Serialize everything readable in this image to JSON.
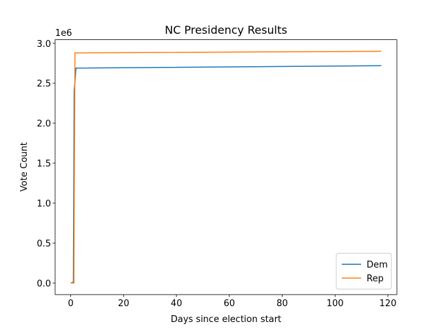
{
  "chart_data": {
    "type": "line",
    "title": "NC Presidency Results",
    "x_label": "Days since election start",
    "y_label": "Vote Count",
    "y_offset_label": "1e6",
    "xlim": [
      -5.9,
      123.4
    ],
    "xticks": [
      0,
      20,
      40,
      60,
      80,
      100,
      120
    ],
    "ylim": [
      -145000,
      3045000
    ],
    "yticks": [
      {
        "value": 0,
        "label": "0.0"
      },
      {
        "value": 500000,
        "label": "0.5"
      },
      {
        "value": 1000000,
        "label": "1.0"
      },
      {
        "value": 1500000,
        "label": "1.5"
      },
      {
        "value": 2000000,
        "label": "2.0"
      },
      {
        "value": 2500000,
        "label": "2.5"
      },
      {
        "value": 3000000,
        "label": "3.0"
      }
    ],
    "legend": "lower right",
    "series": [
      {
        "name": "Dem",
        "color": "#1f77b4",
        "x": [
          0,
          1,
          1.3,
          2,
          117.5
        ],
        "values": [
          0,
          10000,
          2400000,
          2690000,
          2720000
        ]
      },
      {
        "name": "Rep",
        "color": "#ff7f0e",
        "x": [
          0,
          1.2,
          1.6,
          117.5
        ],
        "values": [
          0,
          0,
          2880000,
          2900000
        ]
      }
    ]
  }
}
